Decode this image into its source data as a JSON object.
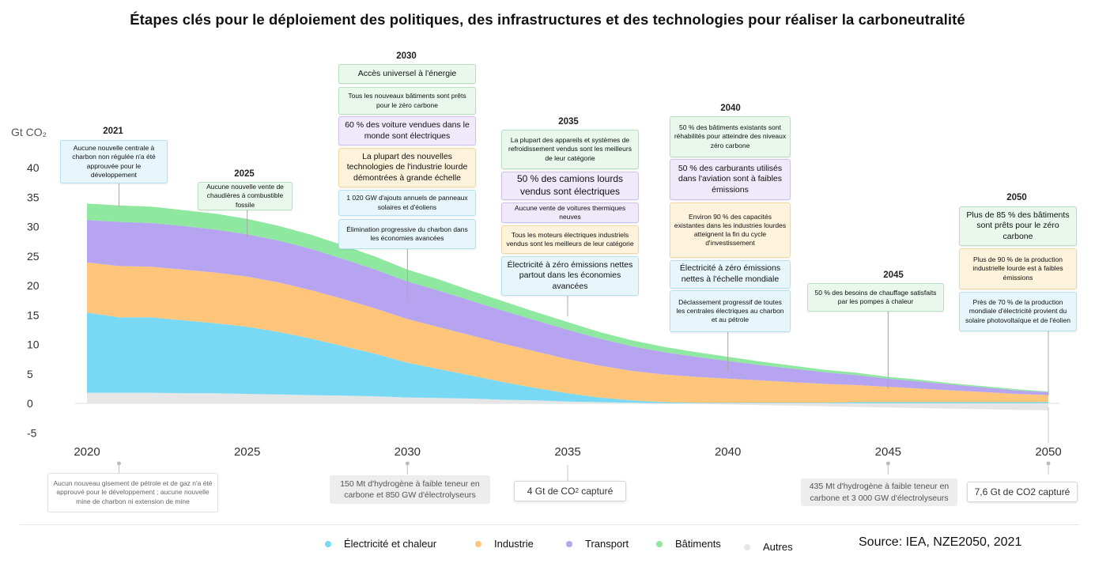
{
  "title": "Étapes clés pour le déploiement des politiques, des infrastructures et des technologies pour réaliser la carboneutralité",
  "source": "Source: IEA, NZE2050, 2021",
  "colors": {
    "electricity": "#79d9f5",
    "industry": "#ffc67b",
    "transport": "#b6a4f0",
    "buildings": "#8fe8a0",
    "other": "#e6e6e6"
  },
  "chart_data": {
    "type": "area",
    "title": "Étapes clés pour le déploiement des politiques, des infrastructures et des technologies pour réaliser la carboneutralité",
    "ylabel": "Gt CO₂",
    "ylim": [
      -5,
      40
    ],
    "yticks": [
      40,
      35,
      30,
      25,
      20,
      15,
      10,
      5,
      0,
      -5
    ],
    "xlim": [
      2020,
      2050
    ],
    "xticks": [
      2020,
      2025,
      2030,
      2035,
      2040,
      2045,
      2050
    ],
    "x": [
      2020,
      2021,
      2022,
      2023,
      2024,
      2025,
      2026,
      2027,
      2028,
      2029,
      2030,
      2031,
      2032,
      2033,
      2034,
      2035,
      2036,
      2037,
      2038,
      2039,
      2040,
      2041,
      2042,
      2043,
      2044,
      2045,
      2046,
      2047,
      2048,
      2049,
      2050
    ],
    "series": [
      {
        "name": "Autres",
        "key": "other",
        "values": [
          1.8,
          1.8,
          1.8,
          1.7,
          1.7,
          1.6,
          1.5,
          1.4,
          1.3,
          1.2,
          1.0,
          0.9,
          0.8,
          0.6,
          0.5,
          0.3,
          0.2,
          0.1,
          0.0,
          -0.1,
          -0.2,
          -0.3,
          -0.4,
          -0.5,
          -0.6,
          -0.7,
          -0.8,
          -0.9,
          -1.0,
          -1.1,
          -1.2
        ]
      },
      {
        "name": "Électricité et chaleur",
        "key": "electricity",
        "values": [
          13.6,
          12.8,
          12.8,
          12.4,
          11.9,
          11.4,
          10.6,
          9.6,
          8.4,
          7.2,
          5.9,
          4.9,
          3.9,
          3.0,
          2.1,
          1.4,
          0.8,
          0.4,
          0.2,
          0.1,
          0.1,
          0.1,
          0.1,
          0.1,
          0.2,
          0.2,
          0.2,
          0.2,
          0.2,
          0.2,
          0.2
        ]
      },
      {
        "name": "Industrie",
        "key": "industry",
        "values": [
          8.5,
          8.7,
          8.6,
          8.6,
          8.6,
          8.5,
          8.4,
          8.2,
          8.0,
          7.7,
          7.4,
          7.1,
          6.8,
          6.5,
          6.2,
          5.8,
          5.4,
          5.0,
          4.7,
          4.4,
          4.1,
          3.8,
          3.5,
          3.2,
          2.9,
          2.6,
          2.3,
          2.0,
          1.7,
          1.4,
          1.2
        ]
      },
      {
        "name": "Transport",
        "key": "transport",
        "values": [
          7.2,
          7.5,
          7.4,
          7.4,
          7.3,
          7.2,
          7.1,
          7.0,
          6.8,
          6.6,
          6.4,
          6.2,
          5.9,
          5.6,
          5.3,
          5.0,
          4.6,
          4.2,
          3.8,
          3.4,
          3.0,
          2.6,
          2.3,
          2.0,
          1.7,
          1.4,
          1.2,
          1.0,
          0.8,
          0.6,
          0.5
        ]
      },
      {
        "name": "Bâtiments",
        "key": "buildings",
        "values": [
          2.8,
          2.8,
          2.8,
          2.7,
          2.7,
          2.6,
          2.5,
          2.4,
          2.3,
          2.2,
          2.0,
          1.9,
          1.7,
          1.6,
          1.4,
          1.3,
          1.1,
          1.0,
          0.9,
          0.8,
          0.7,
          0.6,
          0.5,
          0.4,
          0.4,
          0.3,
          0.3,
          0.2,
          0.2,
          0.2,
          0.1
        ]
      }
    ]
  },
  "milestones": {
    "y2021": {
      "year": "2021",
      "items": [
        "Aucune nouvelle centrale à charbon non régulée n'a été approuvée pour le développement"
      ]
    },
    "y2025": {
      "year": "2025",
      "items": [
        "Aucune nouvelle vente de chaudières à combustible fossile"
      ]
    },
    "y2030": {
      "year": "2030",
      "items": [
        "Accès universel à l'énergie",
        "Tous les nouveaux bâtiments sont prêts pour le zéro carbone",
        "60 % des voiture vendues dans le monde sont électriques",
        "La plupart des nouvelles technologies de l'industrie lourde démontrées à grande échelle",
        "1 020 GW d'ajouts annuels de panneaux solaires et d'éoliens",
        "Élimination progressive du charbon dans les économies avancées"
      ]
    },
    "y2035": {
      "year": "2035",
      "items": [
        "La plupart des appareils et systèmes de refroidissement vendus sont les meilleurs de leur catégorie",
        "50 % des camions lourds vendus sont électriques",
        "Aucune vente de voitures thermiques neuves",
        "Tous les moteurs électriques industriels vendus sont les meilleurs de leur catégorie",
        "Électricité à zéro émissions nettes partout dans les économies avancées"
      ]
    },
    "y2040": {
      "year": "2040",
      "items": [
        "50 % des bâtiments existants sont réhabilités pour atteindre des niveaux zéro carbone",
        "50 % des carburants utilisés dans l'aviation sont à faibles émissions",
        "Environ 90 % des capacités existantes dans les industries lourdes atteignent la fin du cycle d'investissement",
        "Électricité à zéro émissions nettes à l'échelle mondiale",
        "Déclassement progressif de toutes les centrales électriques au charbon et au pétrole"
      ]
    },
    "y2045": {
      "year": "2045",
      "items": [
        "50 % des besoins de chauffage satisfaits par les pompes à chaleur"
      ]
    },
    "y2050": {
      "year": "2050",
      "items": [
        "Plus de 85 % des bâtiments sont prêts pour le zéro carbone",
        "Plus de 90 % de la production industrielle lourde est à faibles émissions",
        "Près de 70 % de la production mondiale d'électricité provient du solaire photovoltaïque et de l'éolien"
      ]
    }
  },
  "bottom_notes": {
    "n2021": "Aucun nouveau gisement de pétrole et de gaz n'a été approuvé pour le développement ; aucune nouvelle mine de charbon ni extension de mine",
    "n2030": "150 Mt d'hydrogène à faible teneur en carbone et 850 GW d'électrolyseurs",
    "n2035_prefix": "4 Gt de CO",
    "n2035_sub": "2",
    "n2035_suffix": " capturé",
    "n2045": "435 Mt d'hydrogène à faible teneur en carbone et 3 000 GW d'électrolyseurs",
    "n2050": "7,6 Gt de CO2 capturé"
  }
}
